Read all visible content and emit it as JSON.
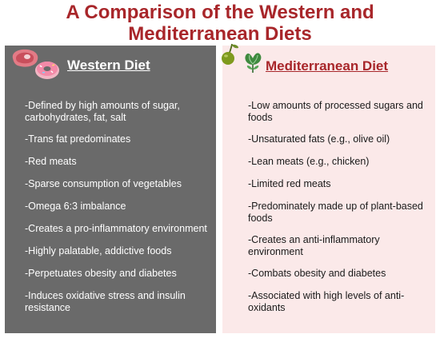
{
  "title": "A Comparison of the Western and Mediterranean Diets",
  "western": {
    "heading": "Western Diet",
    "items": [
      "-Defined by high amounts of sugar, carbohydrates, fat, salt",
      "-Trans fat predominates",
      "-Red meats",
      "-Sparse consumption of vegetables",
      "-Omega 6:3 imbalance",
      "-Creates a pro-inflammatory environment",
      "-Highly palatable, addictive foods",
      "-Perpetuates obesity and diabetes",
      "-Induces oxidative stress and insulin resistance"
    ],
    "icons": [
      "steak-icon",
      "donut-icon"
    ]
  },
  "mediterranean": {
    "heading": "Mediterranean Diet",
    "items": [
      "-Low amounts of processed sugars and foods",
      "-Unsaturated fats (e.g., olive oil)",
      "-Lean meats (e.g., chicken)",
      "-Limited red meats",
      "-Predominately made up of plant-based foods",
      "-Creates an anti-inflammatory environment",
      "-Combats obesity and diabetes",
      "-Associated with high levels of anti-oxidants"
    ],
    "icons": [
      "olive-icon",
      "leafy-greens-icon"
    ]
  },
  "colors": {
    "title": "#a8262a",
    "western_panel": "#6a6a6a",
    "mediterranean_panel": "#fbe9e9"
  }
}
